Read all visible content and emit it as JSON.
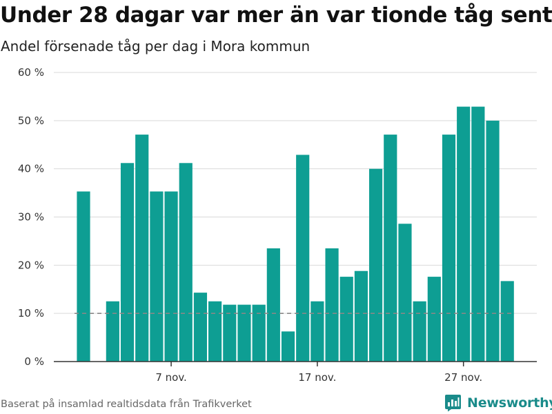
{
  "title": "Under 28 dagar var mer än var tionde tåg sent",
  "subtitle": "Andel försenade tåg per dag i Mora kommun",
  "source": "Baserat på insamlad realtidsdata från Trafikverket",
  "brand": {
    "name": "Newsworthy",
    "icon": "bar-chart-logo-icon",
    "color": "#1a8b8a"
  },
  "chart_data": {
    "type": "bar",
    "bar_color": "#0e9e93",
    "reference_color": "#888888",
    "reference_line": 10,
    "reference_style": "dashed",
    "grid": true,
    "ylim": [
      0,
      60
    ],
    "y_ticks": [
      0,
      10,
      20,
      30,
      40,
      50,
      60
    ],
    "y_tick_labels": [
      "0 %",
      "10 %",
      "20 %",
      "30 %",
      "40 %",
      "50 %",
      "60 %"
    ],
    "x_tick_labels": [
      {
        "label": "7 nov.",
        "date": "2019-11-07"
      },
      {
        "label": "17 nov.",
        "date": "2019-11-17"
      },
      {
        "label": "27 nov.",
        "date": "2019-11-27"
      }
    ],
    "series": [
      {
        "dates": [
          "2019-11-01",
          "2019-11-02",
          "2019-11-03",
          "2019-11-04",
          "2019-11-05",
          "2019-11-06",
          "2019-11-07",
          "2019-11-08",
          "2019-11-09",
          "2019-11-10",
          "2019-11-11",
          "2019-11-12",
          "2019-11-13",
          "2019-11-14",
          "2019-11-15",
          "2019-11-16",
          "2019-11-17",
          "2019-11-18",
          "2019-11-19",
          "2019-11-20",
          "2019-11-21",
          "2019-11-22",
          "2019-11-23",
          "2019-11-24",
          "2019-11-25",
          "2019-11-26",
          "2019-11-27",
          "2019-11-28",
          "2019-11-29",
          "2019-11-30",
          "2019-12-01"
        ],
        "values": [
          35.3,
          null,
          12.5,
          41.2,
          47.1,
          35.3,
          35.3,
          41.2,
          14.3,
          12.5,
          11.8,
          11.8,
          11.8,
          23.5,
          6.25,
          42.9,
          12.5,
          23.5,
          17.6,
          18.8,
          40.0,
          47.1,
          28.6,
          12.5,
          17.6,
          47.1,
          52.9,
          52.9,
          50.0,
          16.7,
          null
        ]
      }
    ]
  }
}
